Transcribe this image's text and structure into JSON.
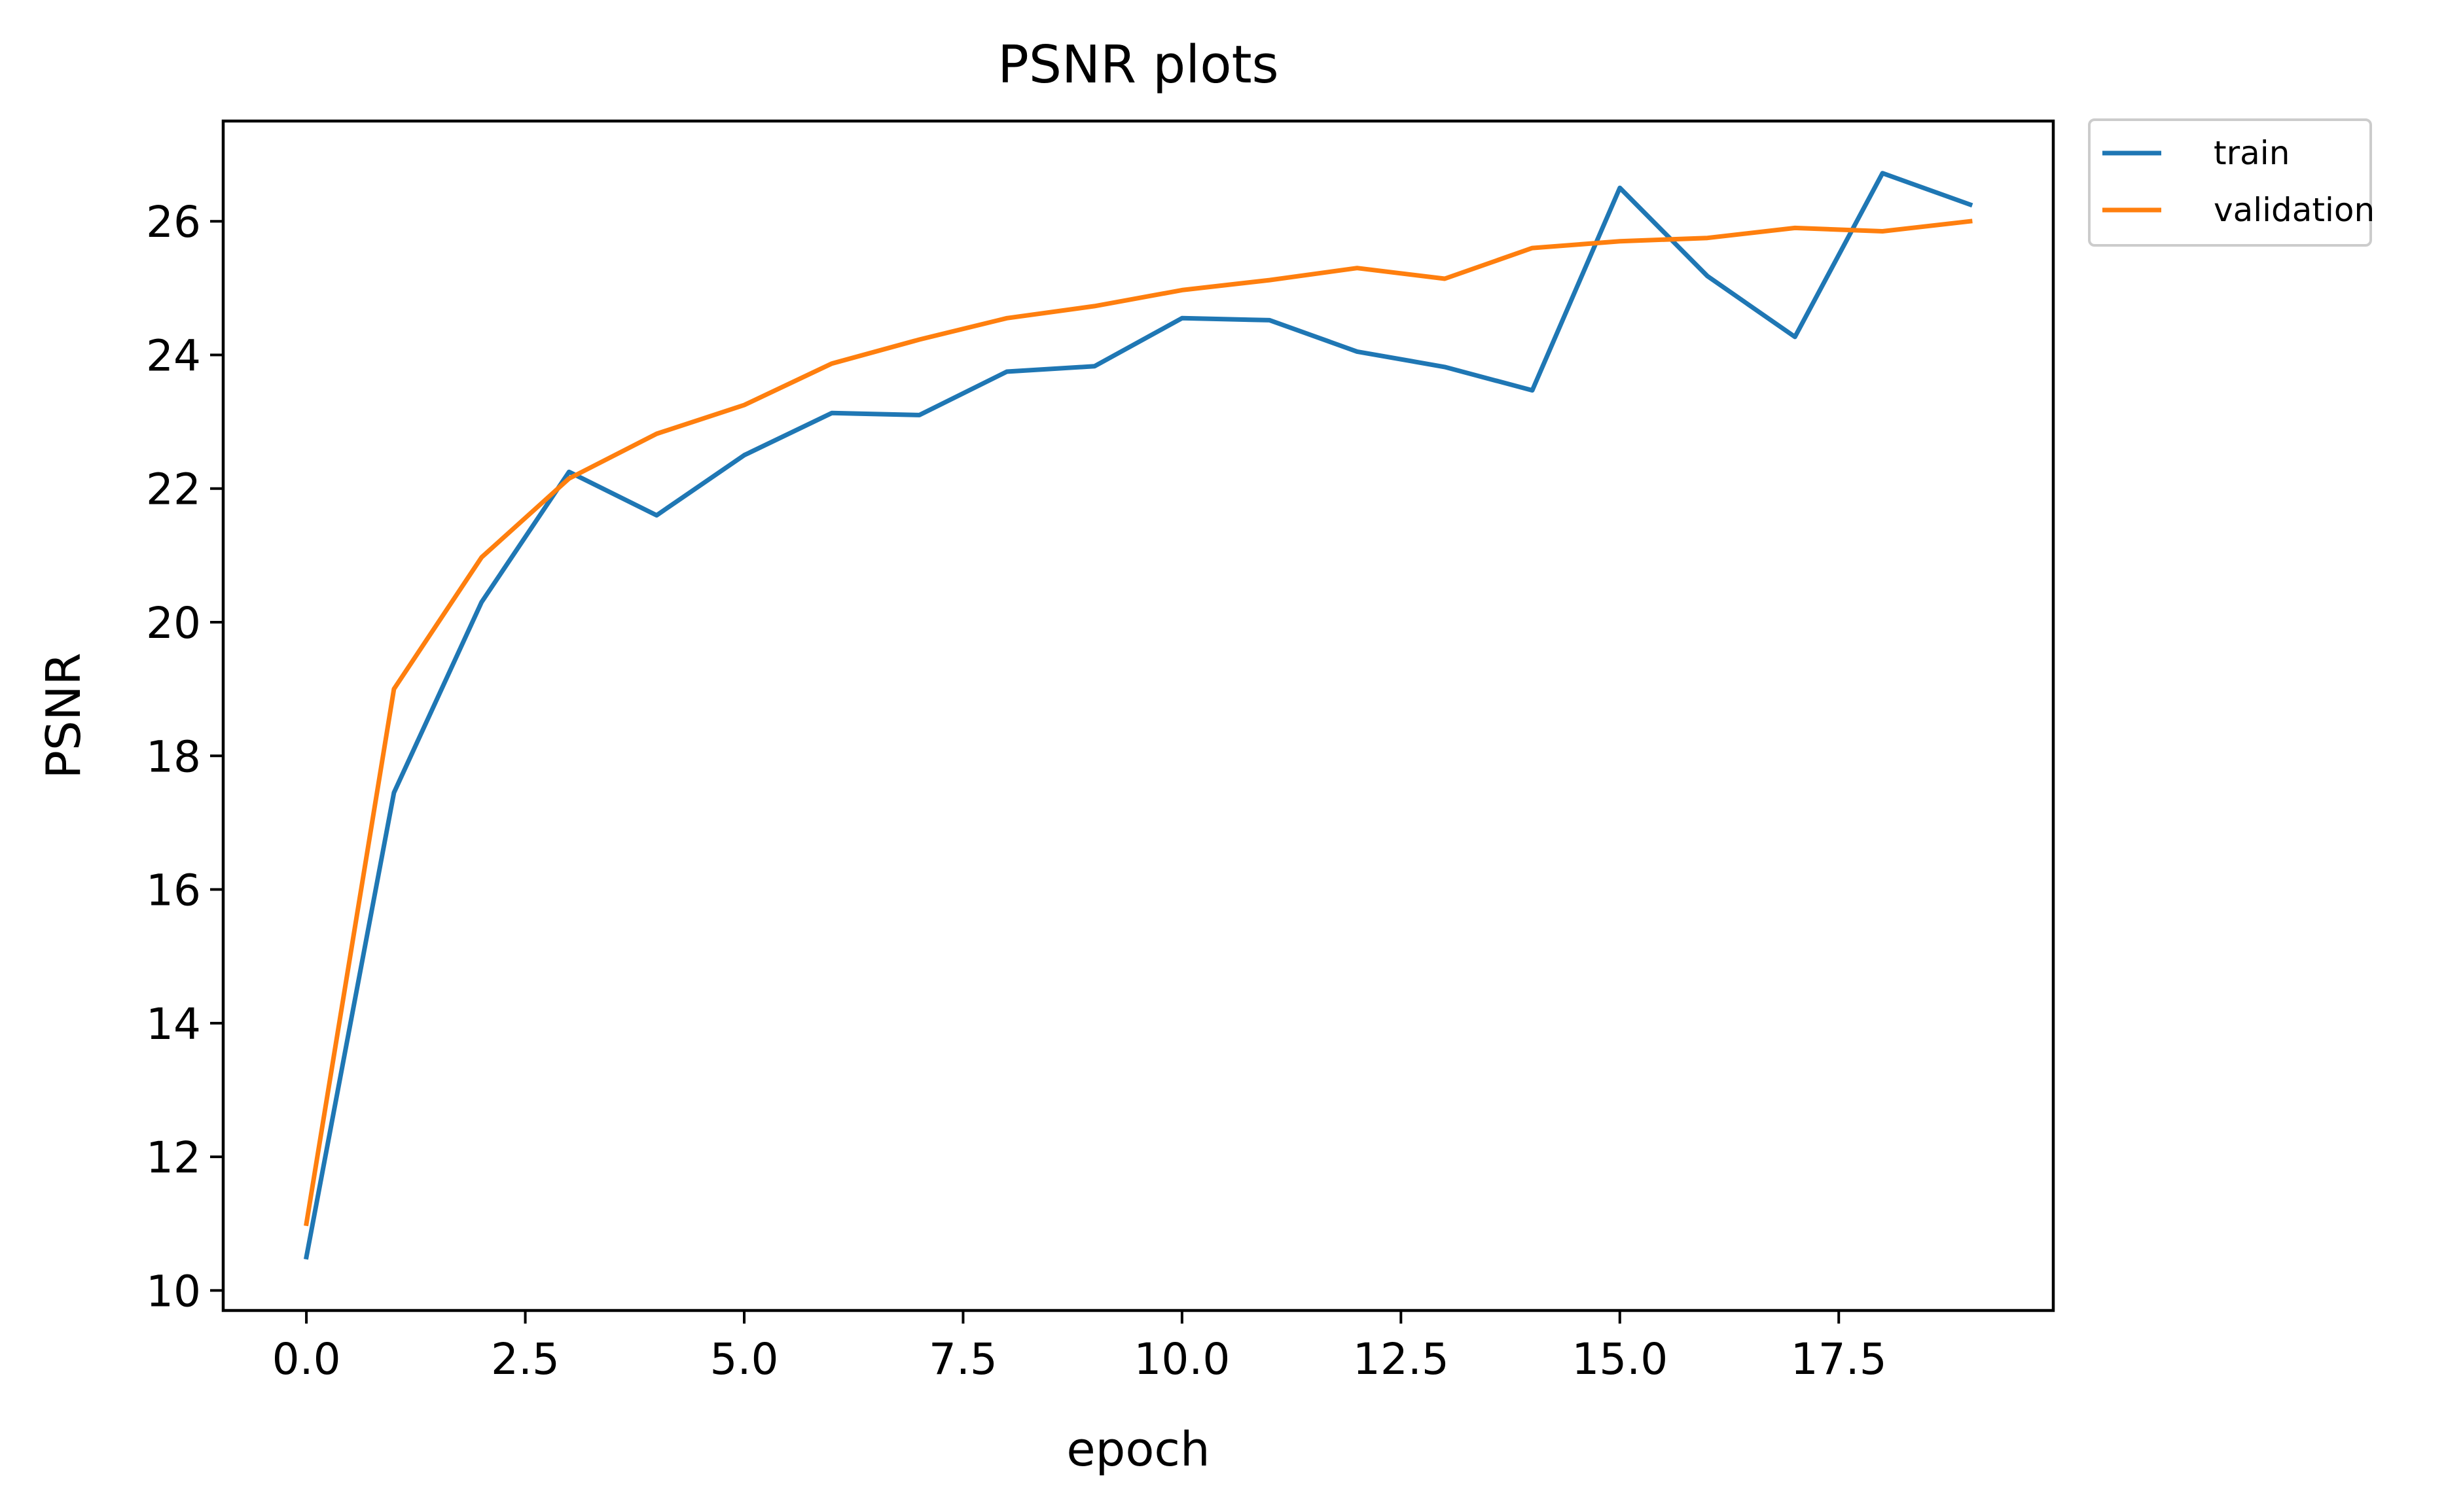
{
  "chart_data": {
    "type": "line",
    "title": "PSNR plots",
    "xlabel": "epoch",
    "ylabel": "PSNR",
    "xlim": [
      -0.95,
      19.95
    ],
    "ylim": [
      9.7,
      27.5
    ],
    "x_ticks": [
      "0.0",
      "2.5",
      "5.0",
      "7.5",
      "10.0",
      "12.5",
      "15.0",
      "17.5"
    ],
    "y_ticks": [
      "10",
      "12",
      "14",
      "16",
      "18",
      "20",
      "22",
      "24",
      "26"
    ],
    "legend_position": "outside-top-right",
    "grid": false,
    "x": [
      0,
      1,
      2,
      3,
      4,
      5,
      6,
      7,
      8,
      9,
      10,
      11,
      12,
      13,
      14,
      15,
      16,
      17,
      18,
      19
    ],
    "series": [
      {
        "name": "train",
        "color": "#1f77b4",
        "values": [
          10.5,
          17.45,
          20.3,
          22.25,
          21.6,
          22.5,
          23.13,
          23.1,
          23.75,
          23.83,
          24.55,
          24.52,
          24.05,
          23.82,
          23.47,
          26.5,
          25.18,
          24.27,
          26.72,
          26.25
        ]
      },
      {
        "name": "validation",
        "color": "#ff7f0e",
        "values": [
          11.0,
          19.0,
          20.97,
          22.15,
          22.82,
          23.25,
          23.87,
          24.23,
          24.55,
          24.73,
          24.97,
          25.12,
          25.3,
          25.14,
          25.6,
          25.7,
          25.75,
          25.9,
          25.85,
          26.0
        ]
      }
    ]
  }
}
